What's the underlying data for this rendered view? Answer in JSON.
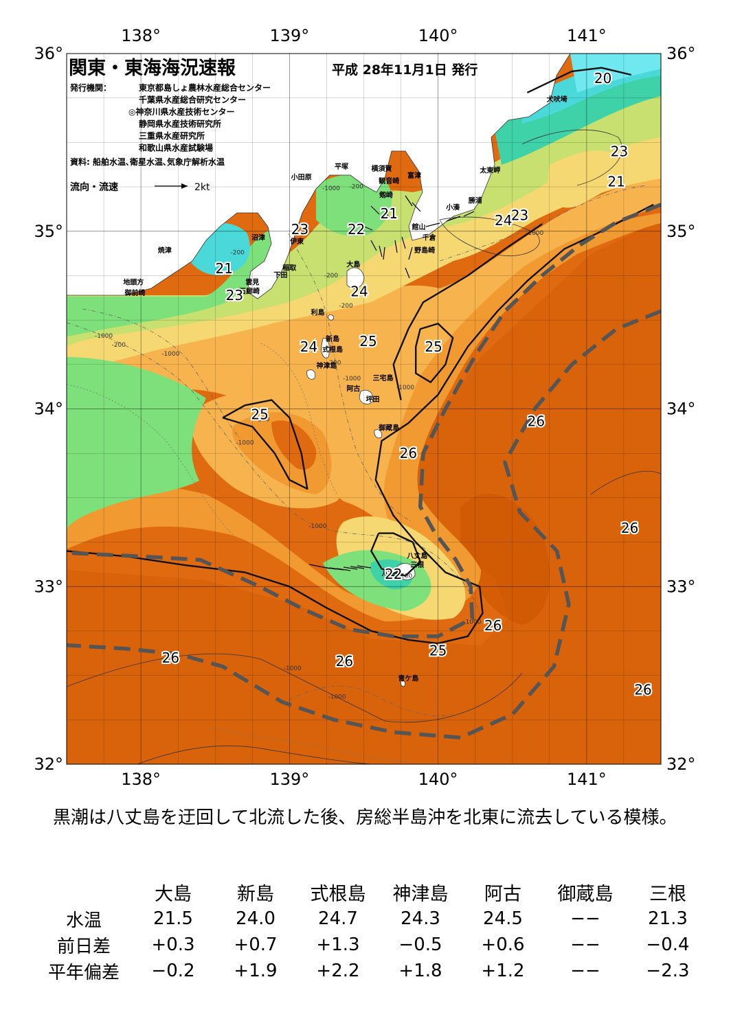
{
  "header": {
    "title": "関東・東海海況速報",
    "date": "平成 28年11月1日 発行",
    "issuers_label": "発行機関：",
    "issuers": [
      "東京都島しょ農林水産総合センター",
      "千葉県水産総合研究センター",
      "◎神奈川県水産技術センター",
      "静岡県水産技術研究所",
      "三重県水産研究所",
      "和歌山県水産試験場"
    ],
    "source": "資料: 船舶水温､衛星水温､気象庁解析水温",
    "flow_legend": "流向・流速",
    "flow_unit": "2kt"
  },
  "map": {
    "lon_labels": [
      "138°",
      "139°",
      "140°",
      "141°"
    ],
    "lat_labels": [
      "36°",
      "35°",
      "34°",
      "33°",
      "32°"
    ],
    "lon_range": [
      137.5,
      141.5
    ],
    "lat_range": [
      32.0,
      36.0
    ],
    "colors": {
      "t26plus": "#cc5500",
      "t26": "#e06a10",
      "t25": "#f29a32",
      "t24": "#f7b34e",
      "t23": "#f6d873",
      "t22": "#c8e070",
      "t21": "#7de07a",
      "t20": "#3fd2a8",
      "t19": "#4ad8d8",
      "t18": "#6fe8f0",
      "land": "#ffffff",
      "kuroshio": "#555555"
    },
    "place_names": [
      {
        "name": "犬吠埼",
        "lon": 140.8,
        "lat": 35.73
      },
      {
        "name": "太東岬",
        "lon": 140.35,
        "lat": 35.33
      },
      {
        "name": "勝浦",
        "lon": 140.25,
        "lat": 35.16
      },
      {
        "name": "小湊",
        "lon": 140.1,
        "lat": 35.12
      },
      {
        "name": "富津",
        "lon": 139.84,
        "lat": 35.3
      },
      {
        "name": "横須賀",
        "lon": 139.62,
        "lat": 35.34
      },
      {
        "name": "平塚",
        "lon": 139.35,
        "lat": 35.35
      },
      {
        "name": "観音崎",
        "lon": 139.67,
        "lat": 35.27
      },
      {
        "name": "剱崎",
        "lon": 139.65,
        "lat": 35.19
      },
      {
        "name": "小田原",
        "lon": 139.08,
        "lat": 35.29
      },
      {
        "name": "館山",
        "lon": 139.87,
        "lat": 35.01
      },
      {
        "name": "千倉",
        "lon": 139.94,
        "lat": 34.95
      },
      {
        "name": "野島崎",
        "lon": 139.91,
        "lat": 34.88
      },
      {
        "name": "沼津",
        "lon": 138.79,
        "lat": 34.95
      },
      {
        "name": "伊東",
        "lon": 139.05,
        "lat": 34.93
      },
      {
        "name": "大島",
        "lon": 139.43,
        "lat": 34.8
      },
      {
        "name": "焼津",
        "lon": 138.16,
        "lat": 34.88
      },
      {
        "name": "稲取",
        "lon": 139.0,
        "lat": 34.78
      },
      {
        "name": "下田",
        "lon": 138.94,
        "lat": 34.74
      },
      {
        "name": "雲見",
        "lon": 138.75,
        "lat": 34.7
      },
      {
        "name": "石廊崎",
        "lon": 138.73,
        "lat": 34.65
      },
      {
        "name": "地頭方",
        "lon": 137.95,
        "lat": 34.7
      },
      {
        "name": "御前崎",
        "lon": 137.96,
        "lat": 34.64
      },
      {
        "name": "利島",
        "lon": 139.19,
        "lat": 34.53
      },
      {
        "name": "新島",
        "lon": 139.29,
        "lat": 34.38
      },
      {
        "name": "式根島",
        "lon": 139.29,
        "lat": 34.32
      },
      {
        "name": "神津島",
        "lon": 139.25,
        "lat": 34.23
      },
      {
        "name": "三宅島",
        "lon": 139.63,
        "lat": 34.16
      },
      {
        "name": "阿古",
        "lon": 139.43,
        "lat": 34.1
      },
      {
        "name": "坪田",
        "lon": 139.56,
        "lat": 34.04
      },
      {
        "name": "御蔵島",
        "lon": 139.67,
        "lat": 33.88
      },
      {
        "name": "八丈島",
        "lon": 139.86,
        "lat": 33.16
      },
      {
        "name": "三根",
        "lon": 139.86,
        "lat": 33.11
      },
      {
        "name": "八重根",
        "lon": 139.69,
        "lat": 33.06
      },
      {
        "name": "青ケ島",
        "lon": 139.8,
        "lat": 32.47
      }
    ],
    "temp_labels": [
      {
        "v": "20",
        "lon": 141.11,
        "lat": 35.86
      },
      {
        "v": "23",
        "lon": 141.22,
        "lat": 35.45
      },
      {
        "v": "21",
        "lon": 141.2,
        "lat": 35.28
      },
      {
        "v": "24",
        "lon": 140.44,
        "lat": 35.06
      },
      {
        "v": "23",
        "lon": 140.55,
        "lat": 35.09
      },
      {
        "v": "23",
        "lon": 139.07,
        "lat": 35.01
      },
      {
        "v": "22",
        "lon": 139.45,
        "lat": 35.01
      },
      {
        "v": "21",
        "lon": 139.67,
        "lat": 35.1
      },
      {
        "v": "21",
        "lon": 138.56,
        "lat": 34.79
      },
      {
        "v": "23",
        "lon": 138.63,
        "lat": 34.64
      },
      {
        "v": "24",
        "lon": 139.47,
        "lat": 34.66
      },
      {
        "v": "25",
        "lon": 139.53,
        "lat": 34.38
      },
      {
        "v": "24",
        "lon": 139.13,
        "lat": 34.35
      },
      {
        "v": "25",
        "lon": 139.97,
        "lat": 34.35
      },
      {
        "v": "25",
        "lon": 138.8,
        "lat": 33.97
      },
      {
        "v": "26",
        "lon": 140.66,
        "lat": 33.93
      },
      {
        "v": "26",
        "lon": 139.8,
        "lat": 33.75
      },
      {
        "v": "26",
        "lon": 141.29,
        "lat": 33.33
      },
      {
        "v": "22",
        "lon": 139.7,
        "lat": 33.07
      },
      {
        "v": "26",
        "lon": 140.37,
        "lat": 32.78
      },
      {
        "v": "25",
        "lon": 140.0,
        "lat": 32.64
      },
      {
        "v": "26",
        "lon": 138.2,
        "lat": 32.6
      },
      {
        "v": "26",
        "lon": 139.37,
        "lat": 32.58
      },
      {
        "v": "26",
        "lon": 141.38,
        "lat": 32.42
      }
    ],
    "depth_labels": [
      {
        "v": "-1000",
        "lon": 139.28,
        "lat": 35.23
      },
      {
        "v": "-200",
        "lon": 139.45,
        "lat": 35.24
      },
      {
        "v": "-200",
        "lon": 138.65,
        "lat": 34.87
      },
      {
        "v": "-200",
        "lon": 139.28,
        "lat": 34.74
      },
      {
        "v": "-1000",
        "lon": 140.65,
        "lat": 34.98
      },
      {
        "v": "-200",
        "lon": 139.38,
        "lat": 34.57
      },
      {
        "v": "-1000",
        "lon": 137.75,
        "lat": 34.4
      },
      {
        "v": "-200",
        "lon": 137.85,
        "lat": 34.35
      },
      {
        "v": "-1000",
        "lon": 138.2,
        "lat": 34.3
      },
      {
        "v": "-1000",
        "lon": 138.7,
        "lat": 33.8
      },
      {
        "v": "-200",
        "lon": 138.82,
        "lat": 33.93
      },
      {
        "v": "-1000",
        "lon": 139.42,
        "lat": 34.16
      },
      {
        "v": "-1000",
        "lon": 139.78,
        "lat": 34.11
      },
      {
        "v": "-200",
        "lon": 139.3,
        "lat": 34.25
      },
      {
        "v": "-1000",
        "lon": 139.19,
        "lat": 33.33
      },
      {
        "v": "-200",
        "lon": 139.78,
        "lat": 33.05
      },
      {
        "v": "-1000",
        "lon": 140.23,
        "lat": 32.79
      },
      {
        "v": "-1000",
        "lon": 139.02,
        "lat": 32.53
      },
      {
        "v": "-1000",
        "lon": 139.32,
        "lat": 32.37
      }
    ],
    "isotherms": [
      {
        "pts": [
          [
            139.85,
            34.35
          ],
          [
            139.88,
            34.45
          ],
          [
            140.0,
            34.48
          ],
          [
            140.1,
            34.4
          ],
          [
            140.05,
            34.25
          ],
          [
            139.95,
            34.15
          ],
          [
            139.85,
            34.2
          ],
          [
            139.85,
            34.35
          ]
        ]
      },
      {
        "pts": [
          [
            138.55,
            33.95
          ],
          [
            138.7,
            34.02
          ],
          [
            138.88,
            34.05
          ],
          [
            139.0,
            33.95
          ],
          [
            139.08,
            33.75
          ],
          [
            139.12,
            33.55
          ],
          [
            139.0,
            33.6
          ],
          [
            138.9,
            33.75
          ],
          [
            138.75,
            33.9
          ],
          [
            138.55,
            33.95
          ]
        ]
      },
      {
        "pts": [
          [
            140.7,
            35.04
          ],
          [
            140.45,
            34.9
          ],
          [
            140.2,
            34.75
          ],
          [
            139.9,
            34.6
          ],
          [
            139.8,
            34.45
          ],
          [
            139.7,
            34.25
          ],
          [
            139.75,
            34.05
          ]
        ]
      },
      {
        "pts": [
          [
            141.45,
            35.15
          ],
          [
            141.1,
            35.0
          ],
          [
            140.85,
            34.9
          ],
          [
            140.6,
            34.72
          ],
          [
            140.4,
            34.55
          ],
          [
            140.2,
            34.35
          ],
          [
            140.0,
            34.08
          ],
          [
            139.8,
            33.92
          ],
          [
            139.62,
            33.82
          ],
          [
            139.58,
            33.6
          ],
          [
            139.7,
            33.4
          ],
          [
            139.85,
            33.25
          ],
          [
            140.05,
            33.08
          ],
          [
            140.28,
            33.0
          ],
          [
            140.3,
            32.85
          ],
          [
            140.2,
            32.72
          ],
          [
            140.0,
            32.68
          ],
          [
            139.8,
            32.7
          ],
          [
            139.55,
            32.75
          ],
          [
            139.25,
            32.88
          ],
          [
            139.0,
            33.0
          ],
          [
            138.7,
            33.08
          ],
          [
            138.3,
            33.12
          ],
          [
            137.9,
            33.17
          ],
          [
            137.5,
            33.2
          ]
        ]
      },
      {
        "pts": [
          [
            141.3,
            35.88
          ],
          [
            141.1,
            35.92
          ],
          [
            140.9,
            35.9
          ],
          [
            140.7,
            35.82
          ],
          [
            140.6,
            35.78
          ]
        ]
      },
      {
        "pts": [
          [
            139.6,
            33.3
          ],
          [
            139.55,
            33.2
          ],
          [
            139.62,
            33.1
          ],
          [
            139.78,
            33.06
          ],
          [
            139.88,
            33.14
          ],
          [
            139.83,
            33.25
          ],
          [
            139.7,
            33.3
          ],
          [
            139.6,
            33.3
          ]
        ]
      }
    ],
    "kuroshio_axis": [
      {
        "pts": [
          [
            141.5,
            35.15
          ],
          [
            141.2,
            35.05
          ],
          [
            140.95,
            34.92
          ],
          [
            140.7,
            34.75
          ],
          [
            140.45,
            34.55
          ],
          [
            140.25,
            34.3
          ],
          [
            140.05,
            34.0
          ],
          [
            139.9,
            33.75
          ],
          [
            139.88,
            33.45
          ],
          [
            139.98,
            33.3
          ],
          [
            140.12,
            33.15
          ],
          [
            140.22,
            33.0
          ],
          [
            140.23,
            32.82
          ],
          [
            140.0,
            32.72
          ],
          [
            139.7,
            32.72
          ],
          [
            139.4,
            32.76
          ],
          [
            139.1,
            32.87
          ],
          [
            138.8,
            33.0
          ],
          [
            138.4,
            33.15
          ],
          [
            138.0,
            33.17
          ],
          [
            137.5,
            33.19
          ]
        ]
      },
      {
        "pts": [
          [
            141.5,
            34.55
          ],
          [
            141.2,
            34.45
          ],
          [
            140.9,
            34.25
          ],
          [
            140.65,
            34.0
          ],
          [
            140.45,
            33.7
          ],
          [
            140.55,
            33.42
          ],
          [
            140.8,
            33.2
          ],
          [
            140.88,
            32.9
          ],
          [
            140.78,
            32.55
          ],
          [
            140.5,
            32.28
          ],
          [
            140.15,
            32.15
          ],
          [
            139.7,
            32.18
          ],
          [
            139.3,
            32.25
          ],
          [
            138.95,
            32.35
          ],
          [
            138.55,
            32.55
          ],
          [
            138.25,
            32.62
          ],
          [
            137.9,
            32.65
          ],
          [
            137.5,
            32.67
          ]
        ]
      }
    ]
  },
  "summary": "黒潮は八丈島を迂回して北流した後、房総半島沖を北東に流去している模様。",
  "stats": {
    "headers": [
      "大島",
      "新島",
      "式根島",
      "神津島",
      "阿古",
      "御蔵島",
      "三根"
    ],
    "rows": [
      {
        "label": "水温",
        "values": [
          "21.5",
          "24.0",
          "24.7",
          "24.3",
          "24.5",
          "−−",
          "21.3"
        ]
      },
      {
        "label": "前日差",
        "values": [
          "+0.3",
          "+0.7",
          "+1.3",
          "−0.5",
          "+0.6",
          "−−",
          "−0.4"
        ]
      },
      {
        "label": "平年偏差",
        "values": [
          "−0.2",
          "+1.9",
          "+2.2",
          "+1.8",
          "+1.2",
          "−−",
          "−2.3"
        ]
      }
    ]
  }
}
